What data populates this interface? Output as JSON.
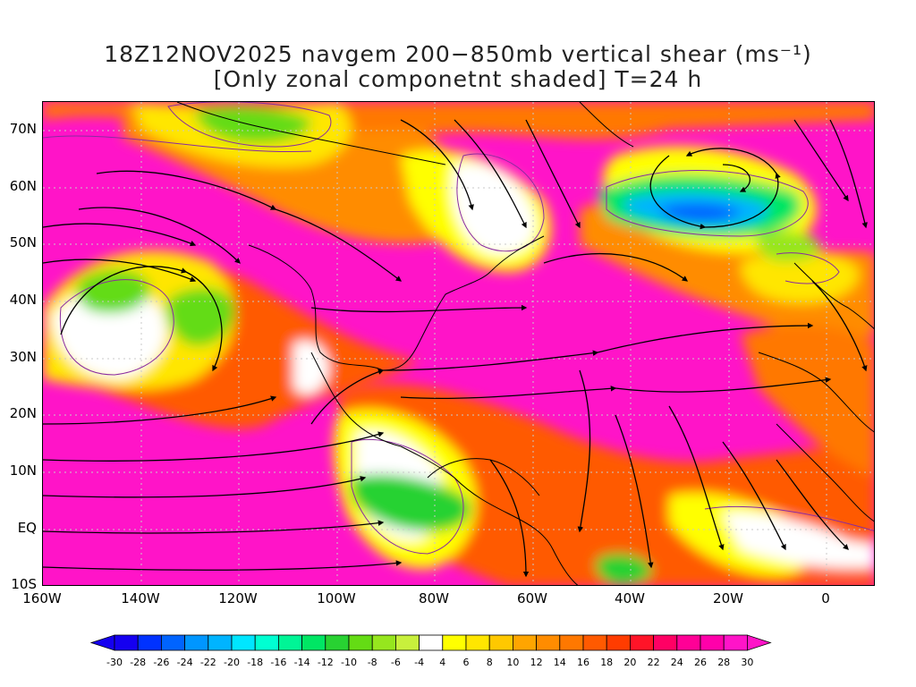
{
  "title": {
    "line1": "18Z12NOV2025 navgem 200−850mb vertical shear (ms⁻¹)",
    "line2": "[Only zonal componetnt shaded] T=24 h"
  },
  "axes": {
    "lat_labels": [
      "70N",
      "60N",
      "50N",
      "40N",
      "30N",
      "20N",
      "10N",
      "EQ",
      "10S"
    ],
    "lon_labels": [
      "160W",
      "140W",
      "120W",
      "100W",
      "80W",
      "60W",
      "40W",
      "20W",
      "0"
    ]
  },
  "colorbar": {
    "labels": [
      "-30",
      "-28",
      "-26",
      "-24",
      "-22",
      "-20",
      "-18",
      "-16",
      "-14",
      "-12",
      "-10",
      "-8",
      "-6",
      "-4",
      "4",
      "6",
      "8",
      "10",
      "12",
      "14",
      "16",
      "18",
      "20",
      "22",
      "24",
      "26",
      "28",
      "30"
    ],
    "colors": [
      "#1500f0",
      "#0032ff",
      "#0064ff",
      "#0096ff",
      "#00b4ff",
      "#00e6ff",
      "#00ffd2",
      "#00f596",
      "#00e664",
      "#28d232",
      "#64dc14",
      "#96e61e",
      "#c8f03c",
      "#ffffff",
      "#ffff00",
      "#ffe600",
      "#ffc800",
      "#ffa500",
      "#ff8c00",
      "#ff7800",
      "#ff5a00",
      "#ff3c00",
      "#ff1428",
      "#ff0064",
      "#ff0096",
      "#ff00aa",
      "#ff14c8"
    ]
  }
}
